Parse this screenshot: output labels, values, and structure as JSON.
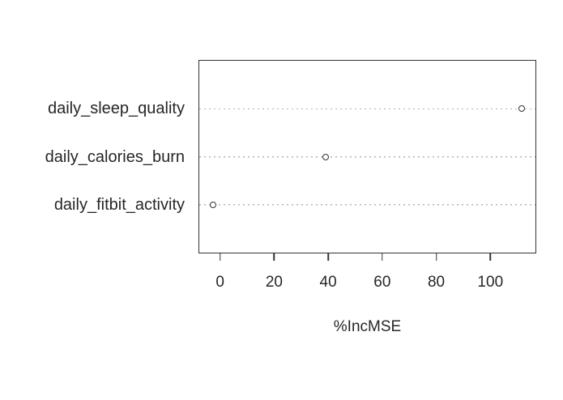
{
  "chart_data": {
    "type": "scatter",
    "variant": "dot-chart-variable-importance",
    "title": "",
    "xlabel": "%IncMSE",
    "ylabel": "",
    "categories": [
      "daily_sleep_quality",
      "daily_calories_burn",
      "daily_fitbit_activity"
    ],
    "values": [
      112,
      39,
      -3
    ],
    "xlim": [
      -8,
      117
    ],
    "xticks": [
      0,
      20,
      40,
      60,
      80,
      100
    ],
    "grid": "horizontal-dotted",
    "legend": "none",
    "point_style": "open-circle",
    "colors": {
      "frame": "#333333",
      "grid": "#b3b3b3",
      "point_stroke": "#333333",
      "text": "#262626",
      "background": "#ffffff"
    }
  }
}
